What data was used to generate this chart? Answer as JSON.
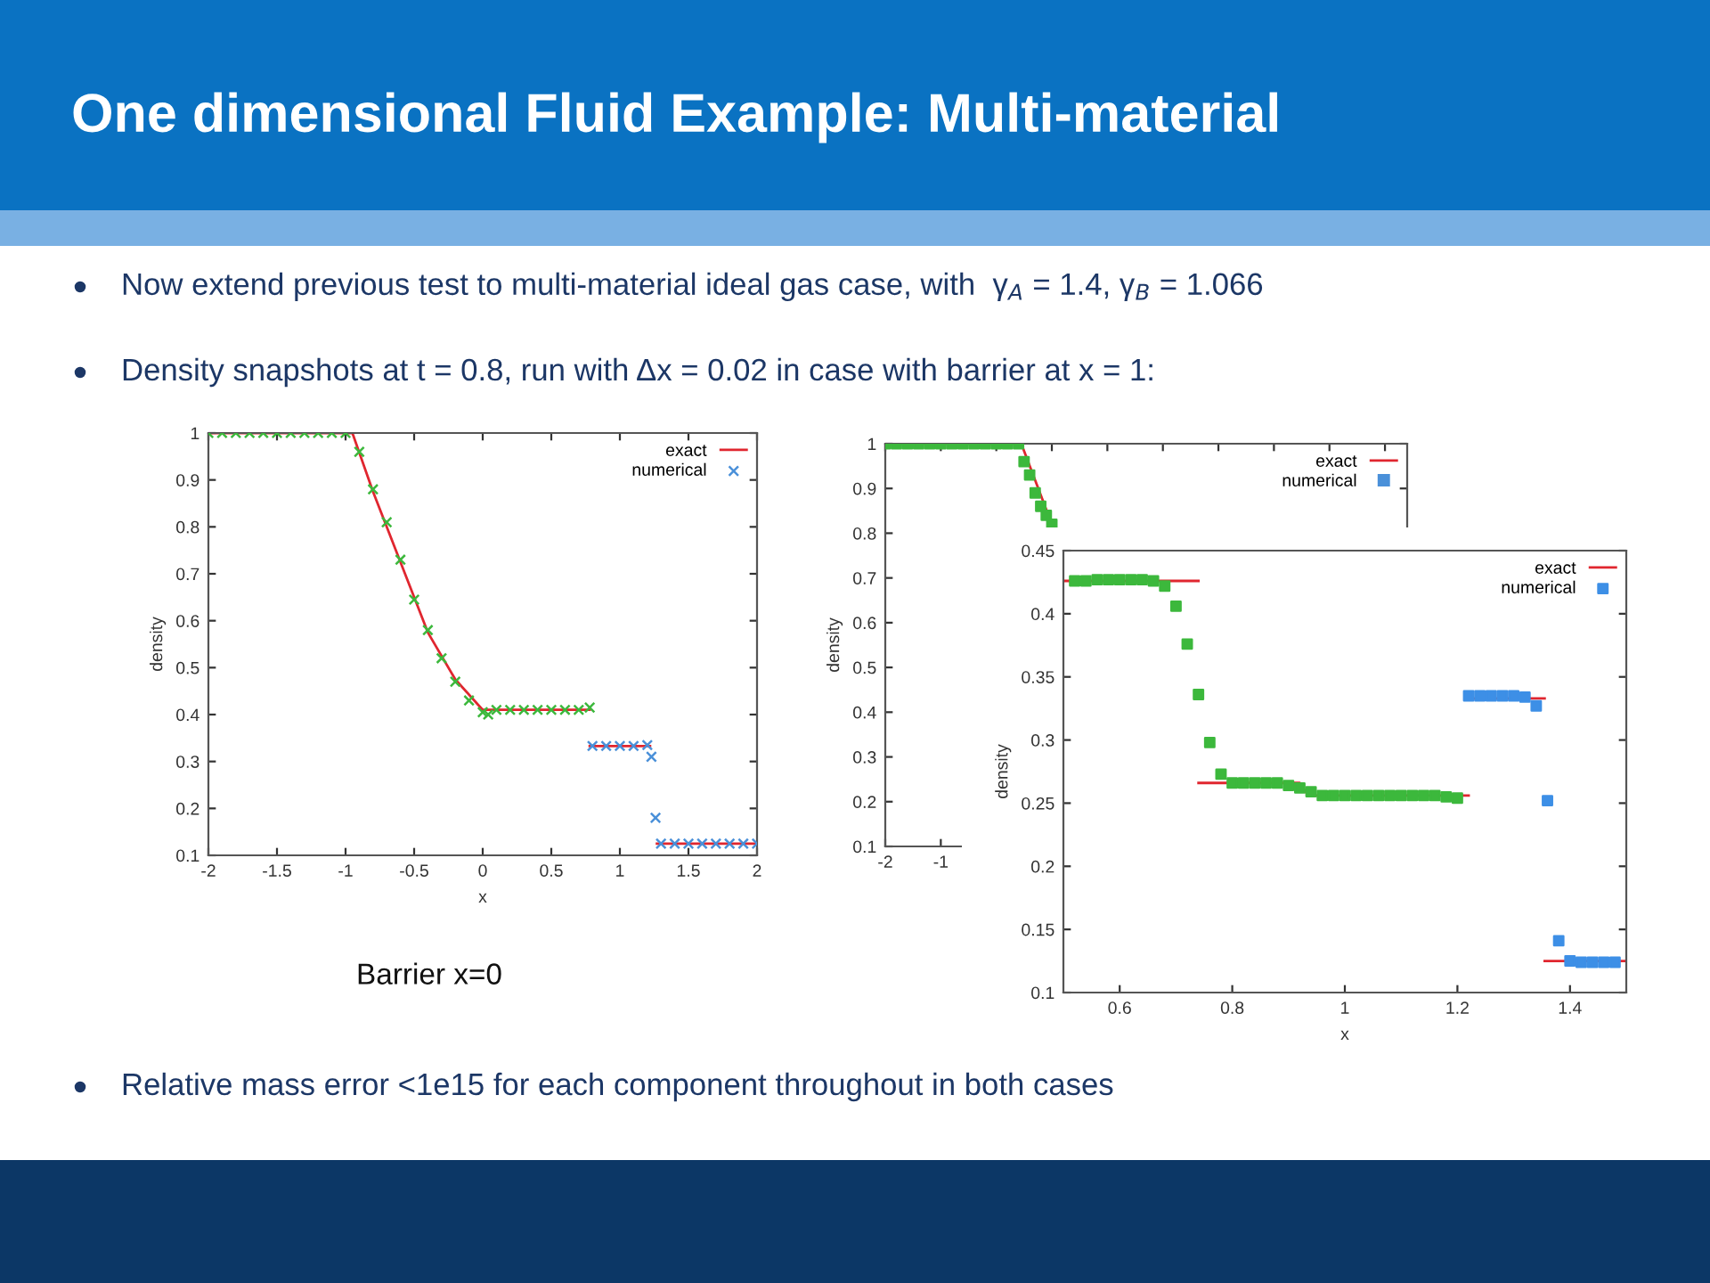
{
  "chart_data": [
    {
      "type": "other",
      "title": "One dimensional Fluid Example: Multi-material",
      "annotations": [
        "Now extend previous test to multi-material ideal gas case, with  γ$_{A}$ = 1.4, γ$_{B}$ = 1.066",
        "Density snapshots at t = 0.8, run with Δx = 0.02 in case with barrier at x = 1:",
        "Relative mass error <1e15 for each component throughout in both cases"
      ]
    },
    {
      "type": "scatter",
      "xlabel": "x",
      "ylabel": "density",
      "annotations": [
        "Barrier x=0"
      ],
      "xlim": [
        -2,
        2
      ],
      "xticks": [
        -2,
        -1.5,
        -1,
        -0.5,
        0,
        0.5,
        1,
        1.5,
        2
      ],
      "ylim": [
        0.1,
        1
      ],
      "yticks": [
        0.1,
        0.2,
        0.3,
        0.4,
        0.5,
        0.6,
        0.7,
        0.8,
        0.9,
        1
      ],
      "legend": "top right",
      "series": [
        {
          "name": "exact",
          "type": "line",
          "color": "#e0262f",
          "x": [
            -2,
            -0.95,
            -0.8,
            -0.6,
            -0.4,
            -0.2,
            0,
            0.78
          ],
          "values": [
            1,
            1,
            0.875,
            0.725,
            0.575,
            0.475,
            0.41,
            0.41
          ]
        },
        {
          "type": "line",
          "color": "#e0262f",
          "x": [
            0.78,
            1.22
          ],
          "values": [
            0.333,
            0.333
          ]
        },
        {
          "type": "line",
          "color": "#e0262f",
          "x": [
            1.27,
            2
          ],
          "values": [
            0.125,
            0.125
          ]
        },
        {
          "name": "numerical",
          "type": "scatter",
          "marker": "cross",
          "color": "#4a90d9",
          "x": [
            0.8,
            0.9,
            1.0,
            1.1,
            1.2,
            1.23,
            1.26,
            1.3,
            1.4,
            1.5,
            1.6,
            1.7,
            1.8,
            1.9,
            2.0
          ],
          "values": [
            0.333,
            0.333,
            0.333,
            0.333,
            0.335,
            0.31,
            0.18,
            0.125,
            0.125,
            0.125,
            0.125,
            0.125,
            0.125,
            0.125,
            0.125
          ]
        },
        {
          "type": "scatter",
          "marker": "cross",
          "color": "#3cb83c",
          "x": [
            -2,
            -1.9,
            -1.8,
            -1.7,
            -1.6,
            -1.5,
            -1.4,
            -1.3,
            -1.2,
            -1.1,
            -1.0,
            -0.9,
            -0.8,
            -0.7,
            -0.6,
            -0.5,
            -0.4,
            -0.3,
            -0.2,
            -0.1,
            0.0,
            0.04,
            0.1,
            0.2,
            0.3,
            0.4,
            0.5,
            0.6,
            0.7,
            0.78
          ],
          "values": [
            1,
            1,
            1,
            1,
            1,
            1,
            1,
            1,
            1,
            1,
            1,
            0.96,
            0.88,
            0.81,
            0.73,
            0.645,
            0.58,
            0.52,
            0.47,
            0.43,
            0.405,
            0.4,
            0.41,
            0.41,
            0.41,
            0.41,
            0.41,
            0.41,
            0.41,
            0.415
          ]
        }
      ]
    },
    {
      "type": "scatter",
      "ylabel": "density",
      "xlim": [
        -2,
        7.4
      ],
      "xticks": [
        -2,
        -1,
        {
          "value": 0,
          "label": null
        },
        {
          "value": 1,
          "label": null
        },
        {
          "value": 2,
          "label": null
        },
        {
          "value": 3,
          "label": null
        },
        {
          "value": 4,
          "label": null
        },
        {
          "value": 5,
          "label": null
        },
        {
          "value": 6,
          "label": null
        },
        {
          "value": 7,
          "label": null
        }
      ],
      "ylim": [
        0.1,
        1
      ],
      "yticks": [
        0.1,
        0.2,
        0.3,
        0.4,
        0.5,
        0.6,
        0.7,
        0.8,
        0.9,
        1
      ],
      "legend": "top right",
      "series": [
        {
          "name": "exact",
          "type": "line",
          "color": "#e0262f",
          "x": [
            -2,
            0.45,
            1.0
          ],
          "values": [
            1,
            1,
            0.82
          ]
        },
        {
          "name": "numerical",
          "type": "scatter",
          "marker": "square",
          "color": "#4a90d9"
        },
        {
          "type": "scatter",
          "marker": "square",
          "color": "#3cb83c",
          "x": [
            -2,
            -1.8,
            -1.6,
            -1.4,
            -1.2,
            -1.0,
            -0.8,
            -0.6,
            -0.4,
            -0.2,
            0,
            0.2,
            0.4,
            0.5,
            0.6,
            0.7,
            0.8,
            0.9,
            1.0
          ],
          "values": [
            1,
            1,
            1,
            1,
            1,
            1,
            1,
            1,
            1,
            1,
            1,
            1,
            1,
            0.96,
            0.93,
            0.89,
            0.86,
            0.84,
            0.82
          ]
        }
      ]
    },
    {
      "type": "scatter",
      "xlabel": "x",
      "ylabel": "density",
      "xlim": [
        0.5,
        1.5
      ],
      "xticks": [
        0.6,
        0.8,
        1,
        1.2,
        1.4
      ],
      "ylim": [
        0.1,
        0.45
      ],
      "yticks": [
        0.1,
        0.15,
        0.2,
        0.25,
        0.3,
        0.35,
        0.4,
        0.45
      ],
      "legend": "top right",
      "series": [
        {
          "name": "exact",
          "type": "line",
          "color": "#e0262f",
          "x": [
            0.5,
            0.74
          ],
          "values": [
            0.426,
            0.426
          ]
        },
        {
          "type": "line",
          "color": "#e0262f",
          "x": [
            0.74,
            0.92,
            0.935,
            1.22
          ],
          "values": [
            0.266,
            0.266,
            0.256,
            0.256
          ]
        },
        {
          "type": "line",
          "color": "#e0262f",
          "x": [
            1.22,
            1.355
          ],
          "values": [
            0.333,
            0.333
          ]
        },
        {
          "type": "line",
          "color": "#e0262f",
          "x": [
            1.355,
            1.5
          ],
          "values": [
            0.125,
            0.125
          ]
        },
        {
          "name": "numerical",
          "type": "scatter",
          "marker": "square",
          "color": "#3d8fe6",
          "x": [
            1.22,
            1.24,
            1.26,
            1.28,
            1.3,
            1.32,
            1.34,
            1.36,
            1.38,
            1.4,
            1.42,
            1.44,
            1.46,
            1.48
          ],
          "values": [
            0.335,
            0.335,
            0.335,
            0.335,
            0.335,
            0.334,
            0.327,
            0.252,
            0.141,
            0.125,
            0.124,
            0.124,
            0.124,
            0.124
          ]
        },
        {
          "type": "scatter",
          "marker": "square",
          "color": "#3cb83c",
          "x": [
            0.52,
            0.54,
            0.56,
            0.58,
            0.6,
            0.62,
            0.64,
            0.66,
            0.68,
            0.7,
            0.72,
            0.74,
            0.76,
            0.78,
            0.8,
            0.82,
            0.84,
            0.86,
            0.88,
            0.9,
            0.92,
            0.94,
            0.96,
            0.98,
            1.0,
            1.02,
            1.04,
            1.06,
            1.08,
            1.1,
            1.12,
            1.14,
            1.16,
            1.18,
            1.2
          ],
          "values": [
            0.426,
            0.426,
            0.427,
            0.427,
            0.427,
            0.427,
            0.427,
            0.426,
            0.422,
            0.406,
            0.376,
            0.336,
            0.298,
            0.273,
            0.266,
            0.266,
            0.266,
            0.266,
            0.266,
            0.264,
            0.262,
            0.259,
            0.256,
            0.256,
            0.256,
            0.256,
            0.256,
            0.256,
            0.256,
            0.256,
            0.256,
            0.256,
            0.256,
            0.255,
            0.254
          ]
        }
      ]
    }
  ]
}
